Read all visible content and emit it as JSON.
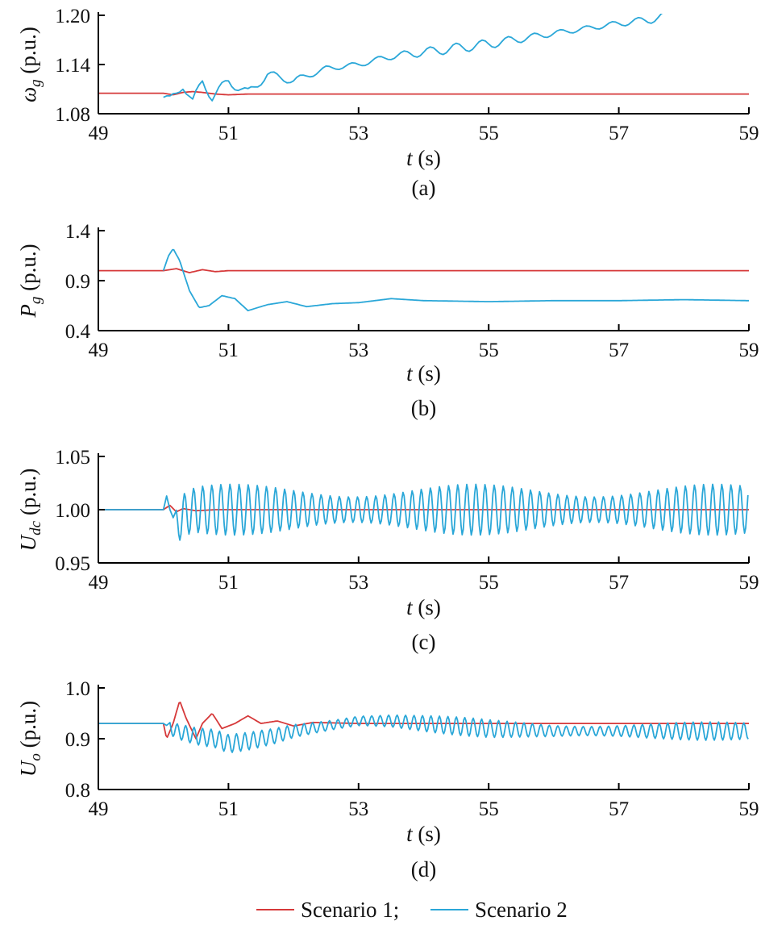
{
  "colors": {
    "scenario1": "#d6393a",
    "scenario2": "#2aa7d8",
    "axis": "#000000"
  },
  "legend": {
    "scenario1": "Scenario 1;",
    "scenario2": "Scenario 2",
    "placement": "bottom-center"
  },
  "chart_data": [
    {
      "id": "a",
      "type": "line",
      "sublabel": "(a)",
      "ylabel_main": "ω",
      "ylabel_sub": "g",
      "ylabel_unit": " (p.u.)",
      "xlabel_main": "t",
      "xlabel_unit": " (s)",
      "xlim": [
        49,
        59
      ],
      "ylim": [
        1.08,
        1.2
      ],
      "xticks": [
        "49",
        "51",
        "53",
        "55",
        "57",
        "59"
      ],
      "yticks": [
        "1.08",
        "1.14",
        "1.20"
      ],
      "series": [
        {
          "key": "scenario1",
          "x": [
            49,
            50,
            50.15,
            50.3,
            50.45,
            50.6,
            50.8,
            51,
            51.3,
            51.6,
            52,
            52.5,
            53,
            54,
            55,
            56,
            57,
            58,
            59
          ],
          "y": [
            1.105,
            1.105,
            1.103,
            1.106,
            1.107,
            1.106,
            1.104,
            1.103,
            1.104,
            1.104,
            1.104,
            1.104,
            1.104,
            1.104,
            1.104,
            1.104,
            1.104,
            1.104,
            1.104
          ]
        },
        {
          "key": "scenario2",
          "x": [
            50,
            50.1,
            50.2,
            50.3,
            50.45,
            50.6,
            50.75,
            51,
            51.3,
            51.6,
            52,
            52.5,
            53,
            53.5,
            54,
            55,
            56,
            57,
            57.5,
            57.75
          ],
          "y": [
            1.1,
            1.097,
            1.105,
            1.115,
            1.094,
            1.12,
            1.1,
            1.12,
            1.105,
            1.128,
            1.12,
            1.135,
            1.14,
            1.15,
            1.155,
            1.165,
            1.178,
            1.19,
            1.195,
            1.2
          ],
          "osc_amp": 0.006,
          "osc_period": 0.4
        }
      ]
    },
    {
      "id": "b",
      "type": "line",
      "sublabel": "(b)",
      "ylabel_main": "P",
      "ylabel_sub": "g",
      "ylabel_unit": " (p.u.)",
      "xlabel_main": "t",
      "xlabel_unit": " (s)",
      "xlim": [
        49,
        59
      ],
      "ylim": [
        0.4,
        1.4
      ],
      "xticks": [
        "49",
        "51",
        "53",
        "55",
        "57",
        "59"
      ],
      "yticks": [
        "0.4",
        "0.9",
        "1.4"
      ],
      "series": [
        {
          "key": "scenario1",
          "x": [
            49,
            50,
            50.2,
            50.4,
            50.6,
            50.8,
            51,
            51.5,
            52,
            53,
            55,
            57,
            59
          ],
          "y": [
            1.0,
            1.0,
            1.02,
            0.98,
            1.01,
            0.99,
            1.0,
            1.0,
            1.0,
            1.0,
            1.0,
            1.0,
            1.0
          ]
        },
        {
          "key": "scenario2",
          "x": [
            50,
            50.08,
            50.15,
            50.25,
            50.4,
            50.55,
            50.7,
            50.9,
            51.1,
            51.3,
            51.6,
            51.9,
            52.2,
            52.6,
            53,
            53.5,
            54,
            55,
            56,
            57,
            58,
            59
          ],
          "y": [
            1.0,
            1.15,
            1.22,
            1.1,
            0.8,
            0.63,
            0.65,
            0.75,
            0.72,
            0.6,
            0.66,
            0.69,
            0.64,
            0.67,
            0.68,
            0.72,
            0.7,
            0.69,
            0.7,
            0.7,
            0.71,
            0.7
          ]
        }
      ]
    },
    {
      "id": "c",
      "type": "line",
      "sublabel": "(c)",
      "ylabel_main": "U",
      "ylabel_sub": "dc",
      "ylabel_unit": " (p.u.)",
      "xlabel_main": "t",
      "xlabel_unit": " (s)",
      "xlim": [
        49,
        59
      ],
      "ylim": [
        0.95,
        1.05
      ],
      "xticks": [
        "49",
        "51",
        "53",
        "55",
        "57",
        "59"
      ],
      "yticks": [
        "0.95",
        "1.00",
        "1.05"
      ],
      "series": [
        {
          "key": "scenario1",
          "x": [
            49,
            50,
            50.1,
            50.2,
            50.3,
            50.5,
            50.8,
            51,
            51.5,
            52,
            53,
            55,
            57,
            59
          ],
          "y": [
            1.0,
            1.0,
            1.004,
            0.998,
            1.001,
            0.999,
            1.0,
            1.0,
            1.0,
            1.0,
            1.0,
            1.0,
            1.0,
            1.0
          ]
        },
        {
          "key": "scenario2",
          "x": [
            49,
            50,
            50.03,
            50.1,
            50.2,
            50.3,
            50.5,
            51,
            53,
            55,
            57,
            59
          ],
          "y": [
            1.0,
            1.0,
            1.018,
            1.0,
            0.985,
            0.995,
            1.0,
            1.0,
            1.0,
            1.0,
            1.0,
            1.0
          ],
          "osc_amp": 0.024,
          "osc_period": 0.14,
          "osc_start": 50.15
        }
      ]
    },
    {
      "id": "d",
      "type": "line",
      "sublabel": "(d)",
      "ylabel_main": "U",
      "ylabel_sub": "o",
      "ylabel_unit": " (p.u.)",
      "xlabel_main": "t",
      "xlabel_unit": " (s)",
      "xlim": [
        49,
        59
      ],
      "ylim": [
        0.8,
        1.0
      ],
      "xticks": [
        "49",
        "51",
        "53",
        "55",
        "57",
        "59"
      ],
      "yticks": [
        "0.8",
        "0.9",
        "1.0"
      ],
      "series": [
        {
          "key": "scenario1",
          "x": [
            49,
            50,
            50.05,
            50.15,
            50.25,
            50.35,
            50.5,
            50.6,
            50.75,
            50.9,
            51.1,
            51.3,
            51.5,
            51.75,
            52,
            52.3,
            53,
            54,
            55,
            56,
            57,
            58,
            59
          ],
          "y": [
            0.93,
            0.93,
            0.9,
            0.93,
            0.975,
            0.94,
            0.9,
            0.93,
            0.95,
            0.92,
            0.93,
            0.945,
            0.93,
            0.935,
            0.925,
            0.932,
            0.93,
            0.93,
            0.93,
            0.93,
            0.93,
            0.93,
            0.93
          ]
        },
        {
          "key": "scenario2",
          "x": [
            49,
            50,
            50.2,
            50.5,
            50.8,
            51,
            51.3,
            51.7,
            52,
            52.5,
            53,
            53.5,
            54,
            55,
            56,
            57,
            58,
            59
          ],
          "y": [
            0.93,
            0.93,
            0.915,
            0.905,
            0.9,
            0.89,
            0.895,
            0.905,
            0.915,
            0.925,
            0.935,
            0.935,
            0.93,
            0.92,
            0.915,
            0.915,
            0.915,
            0.915
          ],
          "osc_amp": 0.018,
          "osc_period": 0.13,
          "osc_start": 50.05
        }
      ]
    }
  ]
}
